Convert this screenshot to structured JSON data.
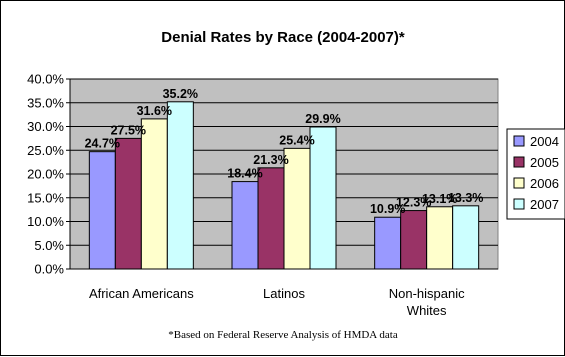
{
  "chart_data": {
    "type": "bar",
    "title": "Denial Rates by Race (2004-2007)*",
    "footnote": "*Based on Federal Reserve Analysis of HMDA data",
    "categories": [
      "African Americans",
      "Latinos",
      "Non-hispanic Whites"
    ],
    "series": [
      {
        "name": "2004",
        "color": "#9999ff",
        "values": [
          24.7,
          18.4,
          10.9
        ],
        "labels": [
          "24.7%",
          "18.4%",
          "10.9%"
        ]
      },
      {
        "name": "2005",
        "color": "#993366",
        "values": [
          27.5,
          21.3,
          12.3
        ],
        "labels": [
          "27.5%",
          "21.3%",
          "12.3%"
        ]
      },
      {
        "name": "2006",
        "color": "#ffffcc",
        "values": [
          31.6,
          25.4,
          13.1
        ],
        "labels": [
          "31.6%",
          "25.4%",
          "13.1%"
        ]
      },
      {
        "name": "2007",
        "color": "#ccffff",
        "values": [
          35.2,
          29.9,
          13.3
        ],
        "labels": [
          "35.2%",
          "29.9%",
          "13.3%"
        ]
      }
    ],
    "yticks": [
      "0.0%",
      "5.0%",
      "10.0%",
      "15.0%",
      "20.0%",
      "25.0%",
      "30.0%",
      "35.0%",
      "40.0%"
    ],
    "ylim": [
      0,
      40
    ],
    "ylabel": "",
    "xlabel": "",
    "grid": true,
    "plot_background": "#c0c0c0",
    "legend_position": "right"
  }
}
